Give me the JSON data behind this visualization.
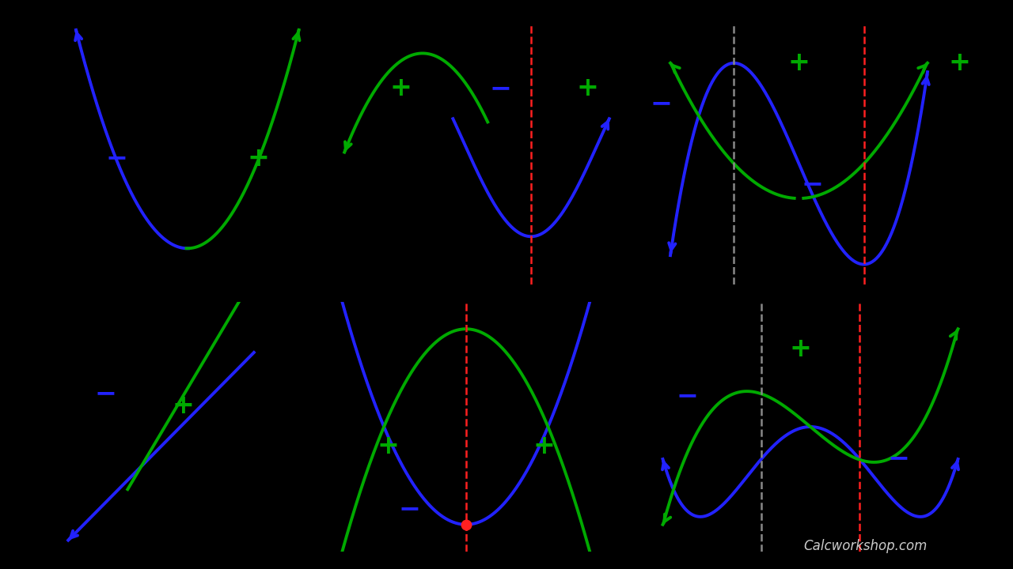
{
  "bg": "#000000",
  "blue": "#2222FF",
  "green": "#00AA00",
  "red": "#FF2020",
  "gray": "#888888",
  "watermark": "Calcworkshop.com",
  "wm_color": "#CCCCCC",
  "lw": 2.8
}
